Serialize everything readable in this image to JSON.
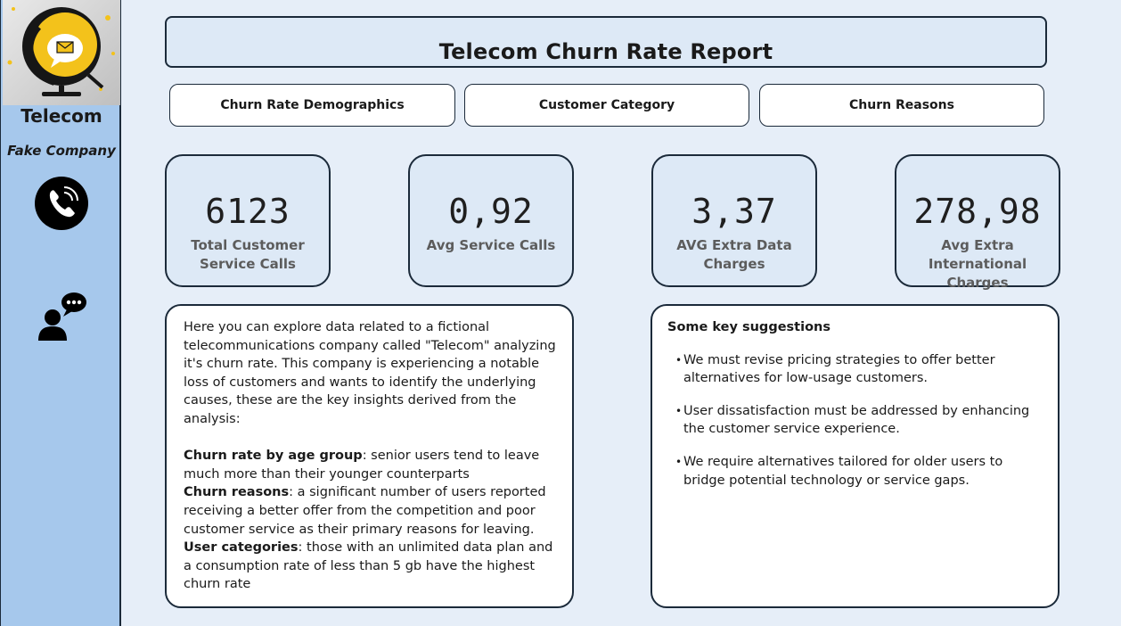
{
  "sidebar": {
    "brand_title": "Telecom",
    "brand_subtitle": "Fake Company",
    "icons": [
      "phone-icon",
      "support-chat-icon"
    ]
  },
  "header": {
    "title": "Telecom Churn Rate Report"
  },
  "nav": [
    {
      "label": "Churn Rate Demographics"
    },
    {
      "label": "Customer Category"
    },
    {
      "label": "Churn Reasons"
    }
  ],
  "kpis": [
    {
      "value": "6123",
      "label": "Total Customer Service Calls"
    },
    {
      "value": "0,92",
      "label": "Avg Service Calls"
    },
    {
      "value": "3,37",
      "label": "AVG Extra Data Charges"
    },
    {
      "value": "278,98",
      "label": "Avg Extra International Charges"
    }
  ],
  "intro": {
    "text": "Here you can explore data related to a fictional telecommunications company called \"Telecom\" analyzing it's churn rate. This company is experiencing a notable loss of customers and wants to identify the underlying causes, these are the key insights derived from the analysis:",
    "insights": [
      {
        "title": "Churn rate by age group",
        "text": ": senior users tend to leave much more than their younger counterparts"
      },
      {
        "title": "Churn reasons",
        "text": ": a significant number of users reported receiving a better offer from the competition and poor customer service as their primary reasons for leaving."
      },
      {
        "title": "User categories",
        "text": ": those with an unlimited data plan and a consumption rate of less than 5 gb have the highest churn rate"
      }
    ]
  },
  "suggestions": {
    "title": "Some key suggestions",
    "items": [
      "We must revise pricing strategies to offer better alternatives for low-usage customers.",
      "User dissatisfaction must be addressed by enhancing the customer service experience.",
      "We require alternatives tailored for older users to bridge potential technology or service gaps."
    ]
  },
  "colors": {
    "sidebar_bg": "#a6c8ec",
    "page_bg": "#e6eef8",
    "card_bg": "#dde9f6",
    "border": "#1b2a3a",
    "logo_accent": "#f3c21b"
  }
}
